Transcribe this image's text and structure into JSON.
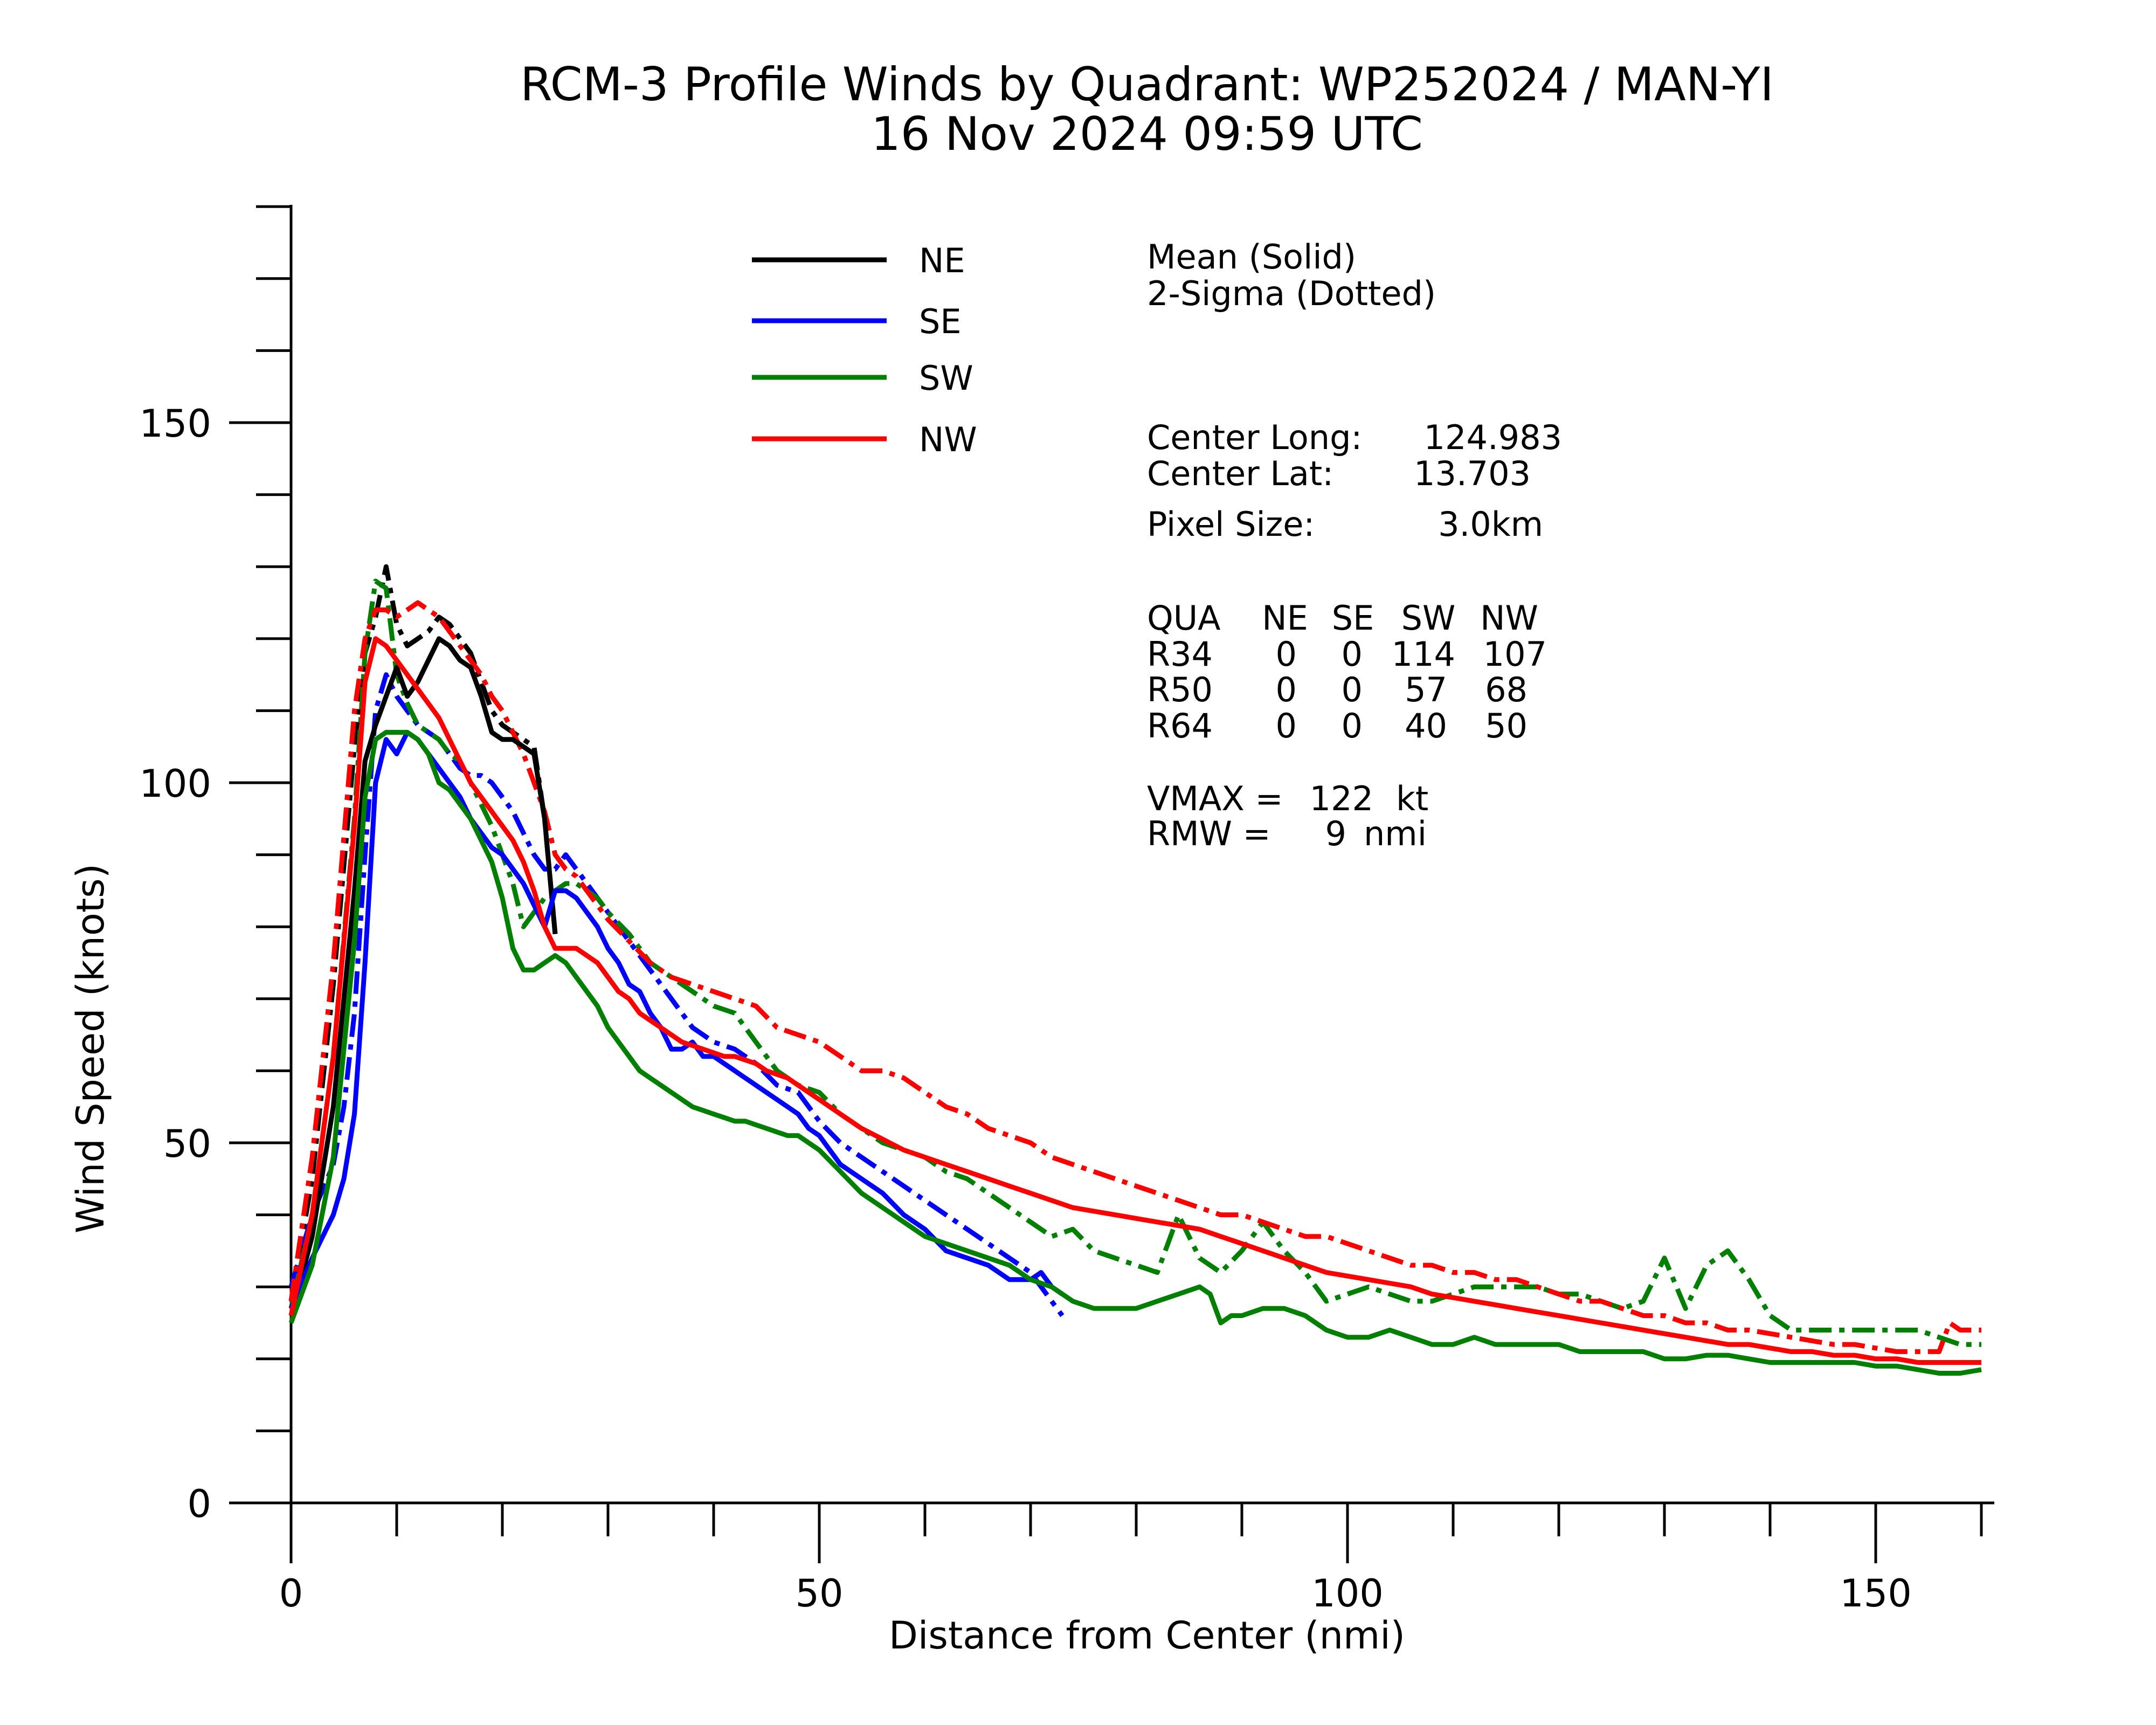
{
  "chart_data": {
    "type": "line",
    "title": "RCM-3 Profile Winds by Quadrant: WP252024 / MAN-YI",
    "subtitle": "16 Nov 2024 09:59 UTC",
    "xlabel": "Distance from Center (nmi)",
    "ylabel": "Wind Speed (knots)",
    "xlim": [
      0,
      163
    ],
    "ylim": [
      0,
      180
    ],
    "x_ticks": [
      0,
      50,
      100,
      150
    ],
    "y_ticks": [
      0,
      50,
      100,
      150
    ],
    "x_tick_labels": [
      "0",
      "50",
      "100",
      "150"
    ],
    "y_tick_labels": [
      "0",
      "50",
      "100",
      "150"
    ],
    "legend": {
      "position": "top-center",
      "entries": [
        {
          "label": "NE",
          "color": "#000000"
        },
        {
          "label": "SE",
          "color": "#0000ff"
        },
        {
          "label": "SW",
          "color": "#007f00"
        },
        {
          "label": "NW",
          "color": "#ff0000"
        }
      ]
    },
    "series": [
      {
        "name": "NE",
        "color": "#000000",
        "style": "mean",
        "x": [
          0,
          2,
          4,
          6,
          7,
          8,
          9,
          10,
          11,
          12,
          13,
          14,
          15,
          16,
          17,
          18,
          19,
          20,
          21,
          22,
          23,
          24,
          25
        ],
        "y": [
          26,
          37,
          55,
          85,
          103,
          108,
          112,
          116,
          112,
          114,
          117,
          120,
          119,
          117,
          116,
          112,
          107,
          106,
          106,
          105,
          104,
          95,
          79
        ]
      },
      {
        "name": "NE",
        "color": "#000000",
        "style": "sigma",
        "x": [
          0,
          2,
          4,
          6,
          7,
          8,
          9,
          10,
          11,
          12,
          13,
          14,
          15,
          16,
          17,
          18,
          19,
          20,
          21,
          22,
          23,
          24,
          25
        ],
        "y": [
          28,
          45,
          72,
          105,
          118,
          123,
          130,
          122,
          119,
          120,
          121,
          123,
          122,
          120,
          118,
          114,
          110,
          108,
          107,
          106,
          105,
          95,
          79
        ]
      },
      {
        "name": "SE",
        "color": "#0000ff",
        "style": "mean",
        "x": [
          0,
          2,
          4,
          5,
          6,
          7,
          8,
          9,
          10,
          11,
          12,
          13,
          14,
          15,
          16,
          17,
          18,
          19,
          20,
          21,
          22,
          23,
          24,
          25,
          26,
          27,
          28,
          29,
          30,
          31,
          32,
          33,
          34,
          35,
          36,
          37,
          38,
          39,
          40,
          41,
          42,
          43,
          44,
          45,
          46,
          47,
          48,
          49,
          50,
          52,
          54,
          56,
          58,
          60,
          62,
          64,
          66,
          68,
          70,
          71,
          72,
          73
        ],
        "y": [
          27,
          34,
          40,
          45,
          54,
          75,
          100,
          106,
          104,
          107,
          106,
          104,
          102,
          100,
          98,
          95,
          93,
          91,
          90,
          88,
          86,
          83,
          80,
          85,
          85,
          84,
          82,
          80,
          77,
          75,
          72,
          71,
          68,
          66,
          63,
          63,
          64,
          62,
          62,
          61,
          60,
          59,
          58,
          57,
          56,
          55,
          54,
          52,
          51,
          47,
          45,
          43,
          40,
          38,
          35,
          34,
          33,
          31,
          31,
          32,
          30,
          29
        ]
      },
      {
        "name": "SE",
        "color": "#0000ff",
        "style": "sigma",
        "x": [
          0,
          2,
          4,
          5,
          6,
          7,
          8,
          9,
          10,
          11,
          12,
          13,
          14,
          15,
          16,
          17,
          18,
          19,
          20,
          21,
          22,
          23,
          24,
          25,
          26,
          27,
          28,
          29,
          30,
          32,
          34,
          36,
          38,
          40,
          42,
          44,
          46,
          48,
          50,
          52,
          54,
          56,
          58,
          60,
          62,
          64,
          66,
          68,
          70,
          71,
          72,
          73
        ],
        "y": [
          30,
          40,
          47,
          55,
          68,
          90,
          110,
          115,
          112,
          110,
          108,
          107,
          106,
          104,
          102,
          101,
          101,
          100,
          98,
          96,
          93,
          90,
          88,
          88,
          90,
          88,
          86,
          84,
          82,
          78,
          74,
          70,
          66,
          64,
          63,
          61,
          58,
          57,
          53,
          50,
          48,
          46,
          44,
          42,
          40,
          38,
          36,
          34,
          32,
          30,
          28,
          26
        ]
      },
      {
        "name": "SW",
        "color": "#007f00",
        "style": "mean",
        "x": [
          0,
          2,
          4,
          6,
          7,
          8,
          9,
          10,
          11,
          12,
          13,
          14,
          15,
          16,
          17,
          18,
          19,
          20,
          21,
          22,
          23,
          24,
          25,
          26,
          27,
          28,
          29,
          30,
          31,
          32,
          33,
          34,
          35,
          36,
          37,
          38,
          39,
          40,
          41,
          42,
          43,
          44,
          45,
          46,
          47,
          48,
          49,
          50,
          52,
          54,
          56,
          58,
          60,
          62,
          64,
          66,
          68,
          70,
          72,
          74,
          76,
          78,
          80,
          82,
          84,
          86,
          87,
          88,
          89,
          90,
          92,
          94,
          96,
          98,
          100,
          102,
          104,
          106,
          108,
          110,
          112,
          114,
          116,
          118,
          120,
          122,
          124,
          126,
          128,
          130,
          132,
          134,
          136,
          138,
          140,
          142,
          144,
          146,
          148,
          150,
          152,
          154,
          156,
          158,
          160
        ],
        "y": [
          25,
          33,
          48,
          78,
          98,
          106,
          107,
          107,
          107,
          106,
          104,
          100,
          99,
          97,
          95,
          92,
          89,
          84,
          77,
          74,
          74,
          75,
          76,
          75,
          73,
          71,
          69,
          66,
          64,
          62,
          60,
          59,
          58,
          57,
          56,
          55,
          54.5,
          54,
          53.5,
          53,
          53,
          52.5,
          52,
          51.5,
          51,
          51,
          50,
          49,
          46,
          43,
          41,
          39,
          37,
          36,
          35,
          34,
          33,
          31,
          30,
          28,
          27,
          27,
          27,
          28,
          29,
          30,
          29,
          25,
          26,
          26,
          27,
          27,
          26,
          24,
          23,
          23,
          24,
          23,
          22,
          22,
          23,
          22,
          22,
          22,
          22,
          21,
          21,
          21,
          21,
          20,
          20,
          20.5,
          20.5,
          20,
          19.5,
          19.5,
          19.5,
          19.5,
          19.5,
          19,
          19,
          18.5,
          18,
          18,
          18.5
        ]
      },
      {
        "name": "SW",
        "color": "#007f00",
        "style": "sigma",
        "x": [
          0,
          2,
          4,
          6,
          7,
          8,
          9,
          10,
          11,
          12,
          13,
          14,
          15,
          16,
          17,
          18,
          19,
          20,
          21,
          22,
          23,
          24,
          25,
          26,
          27,
          28,
          29,
          30,
          32,
          34,
          36,
          38,
          40,
          42,
          44,
          46,
          48,
          50,
          52,
          54,
          56,
          58,
          60,
          62,
          64,
          66,
          68,
          70,
          72,
          74,
          76,
          78,
          80,
          82,
          84,
          86,
          88,
          90,
          92,
          94,
          96,
          98,
          100,
          102,
          104,
          106,
          108,
          110,
          112,
          114,
          116,
          118,
          120,
          122,
          124,
          126,
          128,
          130,
          132,
          134,
          136,
          138,
          140,
          142,
          144,
          146,
          148,
          150,
          152,
          154,
          156,
          158,
          160
        ],
        "y": [
          27,
          40,
          62,
          95,
          118,
          128,
          127,
          115,
          111,
          108,
          107,
          106,
          104,
          103,
          100,
          97,
          94,
          90,
          86,
          80,
          82,
          84,
          85,
          86,
          86,
          85,
          84,
          82,
          79,
          75,
          73,
          71,
          69,
          68,
          64,
          60,
          58,
          57,
          54,
          52,
          50,
          49,
          48,
          46,
          45,
          43,
          41,
          39,
          37,
          38,
          35,
          34,
          33,
          32,
          40,
          34,
          32,
          35,
          39,
          35,
          32,
          28,
          29,
          30,
          29,
          28,
          28,
          29,
          30,
          30,
          30,
          30,
          29,
          29,
          28,
          27,
          28,
          34,
          27,
          33,
          35,
          31,
          26,
          24,
          24,
          24,
          24,
          24,
          24,
          24,
          23,
          22,
          22
        ]
      },
      {
        "name": "NW",
        "color": "#ff0000",
        "style": "mean",
        "x": [
          0,
          2,
          4,
          6,
          7,
          8,
          9,
          10,
          11,
          12,
          13,
          14,
          15,
          16,
          17,
          18,
          19,
          20,
          21,
          22,
          23,
          24,
          25,
          26,
          27,
          28,
          29,
          30,
          31,
          32,
          33,
          34,
          35,
          36,
          37,
          38,
          39,
          40,
          41,
          42,
          43,
          44,
          45,
          46,
          47,
          48,
          49,
          50,
          52,
          54,
          56,
          58,
          60,
          62,
          64,
          66,
          68,
          70,
          72,
          74,
          76,
          78,
          80,
          82,
          84,
          86,
          88,
          90,
          92,
          94,
          96,
          98,
          100,
          102,
          104,
          106,
          108,
          110,
          112,
          114,
          116,
          118,
          120,
          122,
          124,
          126,
          128,
          130,
          132,
          134,
          136,
          138,
          140,
          142,
          144,
          146,
          148,
          150,
          152,
          154,
          156,
          158,
          160
        ],
        "y": [
          26,
          40,
          62,
          94,
          114,
          120,
          119,
          117,
          115,
          113,
          111,
          109,
          106,
          103,
          100,
          98,
          96,
          94,
          92,
          89,
          85,
          80,
          77,
          77,
          77,
          76,
          75,
          73,
          71,
          70,
          68,
          67,
          66,
          65,
          64,
          63.5,
          63,
          62.5,
          62,
          62,
          61.5,
          61,
          60,
          59.5,
          59,
          58,
          57,
          56,
          54,
          52,
          50.5,
          49,
          48,
          47,
          46,
          45,
          44,
          43,
          42,
          41,
          40.5,
          40,
          39.5,
          39,
          38.5,
          38,
          37,
          36,
          35,
          34,
          33,
          32,
          31.5,
          31,
          30.5,
          30,
          29,
          28.5,
          28,
          27.5,
          27,
          26.5,
          26,
          25.5,
          25,
          24.5,
          24,
          23.5,
          23,
          22.5,
          22,
          22,
          21.5,
          21,
          21,
          20.5,
          20.5,
          20,
          20,
          19.5,
          19.5,
          19.5,
          19.5
        ]
      },
      {
        "name": "NW",
        "color": "#ff0000",
        "style": "sigma",
        "x": [
          0,
          2,
          4,
          6,
          7,
          8,
          9,
          10,
          11,
          12,
          13,
          14,
          15,
          16,
          17,
          18,
          19,
          20,
          21,
          22,
          23,
          24,
          25,
          26,
          27,
          28,
          29,
          30,
          32,
          34,
          36,
          38,
          40,
          42,
          44,
          46,
          48,
          50,
          52,
          54,
          56,
          58,
          60,
          62,
          64,
          66,
          68,
          70,
          72,
          74,
          76,
          78,
          80,
          82,
          84,
          86,
          88,
          90,
          92,
          94,
          96,
          98,
          100,
          102,
          104,
          106,
          108,
          110,
          112,
          114,
          116,
          118,
          120,
          122,
          124,
          126,
          128,
          130,
          132,
          134,
          136,
          138,
          140,
          142,
          144,
          146,
          148,
          150,
          152,
          154,
          156,
          157,
          158,
          160
        ],
        "y": [
          28,
          48,
          75,
          110,
          120,
          124,
          124,
          123,
          124,
          125,
          124,
          123,
          121,
          119,
          117,
          115,
          112,
          110,
          107,
          104,
          100,
          96,
          90,
          88,
          87,
          85,
          83,
          81,
          78,
          75,
          73,
          72,
          71,
          70,
          69,
          66,
          65,
          64,
          62,
          60,
          60,
          59,
          57,
          55,
          54,
          52,
          51,
          50,
          48,
          47,
          46,
          45,
          44,
          43,
          42,
          41,
          40,
          40,
          39,
          38,
          37,
          37,
          36,
          35,
          34,
          33,
          33,
          32,
          32,
          31,
          31,
          30,
          29,
          28,
          28,
          27,
          26,
          26,
          25,
          25,
          24,
          24,
          23.5,
          23,
          22.5,
          22,
          22,
          21.5,
          21,
          21,
          21,
          25,
          24,
          24
        ]
      }
    ],
    "info_header": [
      "Mean (Solid)",
      "2-Sigma (Dotted)"
    ],
    "center": [
      {
        "label": "Center Long:",
        "value": "124.983"
      },
      {
        "label": "Center Lat:",
        "value": "13.703"
      },
      {
        "label": "Pixel Size:",
        "value": "3.0km"
      }
    ],
    "radii_table": {
      "header": [
        "QUA",
        "NE",
        "SE",
        "SW",
        "NW"
      ],
      "rows": [
        [
          "R34",
          "0",
          "0",
          "114",
          "107"
        ],
        [
          "R50",
          "0",
          "0",
          "57",
          "68"
        ],
        [
          "R64",
          "0",
          "0",
          "40",
          "50"
        ]
      ]
    },
    "summary": [
      {
        "label": "VMAX =",
        "value": "122",
        "unit": "kt"
      },
      {
        "label": "RMW =",
        "value": "9",
        "unit": "nmi"
      }
    ]
  }
}
